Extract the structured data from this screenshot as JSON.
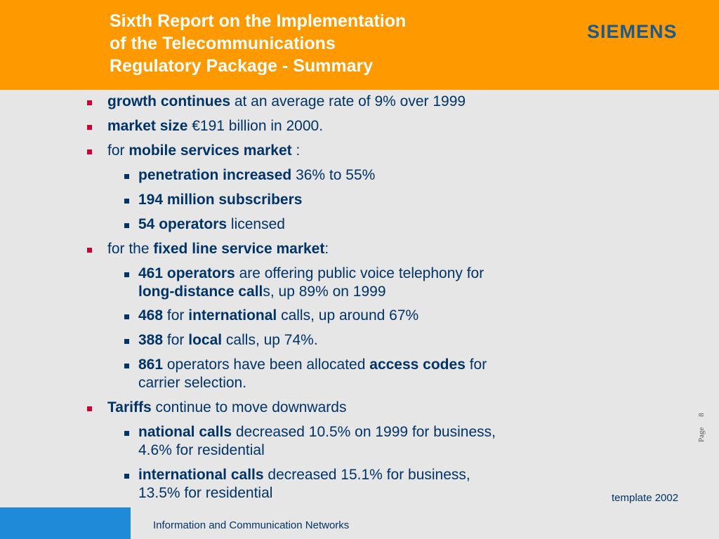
{
  "header": {
    "title_lines": [
      "Sixth Report on the Implementation",
      "of the Telecommunications",
      "Regulatory Package - Summary"
    ],
    "logo": "SIEMENS"
  },
  "bullets": [
    {
      "level": 1,
      "segments": [
        {
          "text": "growth continues",
          "bold": true
        },
        {
          "text": " at an average rate of 9% over 1999",
          "bold": false
        }
      ]
    },
    {
      "level": 1,
      "segments": [
        {
          "text": "market size",
          "bold": true
        },
        {
          "text": " €191 billion in 2000.",
          "bold": false
        }
      ]
    },
    {
      "level": 1,
      "segments": [
        {
          "text": "for ",
          "bold": false
        },
        {
          "text": "mobile services market",
          "bold": true
        },
        {
          "text": " :",
          "bold": false
        }
      ]
    },
    {
      "level": 2,
      "segments": [
        {
          "text": "penetration increased",
          "bold": true
        },
        {
          "text": " 36% to 55%",
          "bold": false
        }
      ]
    },
    {
      "level": 2,
      "segments": [
        {
          "text": "194 million subscribers",
          "bold": true
        }
      ]
    },
    {
      "level": 2,
      "segments": [
        {
          "text": "54 operators",
          "bold": true
        },
        {
          "text": " licensed",
          "bold": false
        }
      ]
    },
    {
      "level": 1,
      "segments": [
        {
          "text": "for the ",
          "bold": false
        },
        {
          "text": "fixed line service market",
          "bold": true
        },
        {
          "text": ":",
          "bold": false
        }
      ]
    },
    {
      "level": 2,
      "segments": [
        {
          "text": "461 operators",
          "bold": true
        },
        {
          "text": " are offering public voice telephony for",
          "bold": false
        }
      ]
    },
    {
      "level": 0,
      "segments": [
        {
          "text": "long-distance call",
          "bold": true
        },
        {
          "text": "s, up 89% on 1999",
          "bold": false
        }
      ]
    },
    {
      "level": 2,
      "segments": [
        {
          "text": "468",
          "bold": true
        },
        {
          "text": " for ",
          "bold": false
        },
        {
          "text": "international",
          "bold": true
        },
        {
          "text": " calls, up around 67%",
          "bold": false
        }
      ]
    },
    {
      "level": 2,
      "segments": [
        {
          "text": "388",
          "bold": true
        },
        {
          "text": " for ",
          "bold": false
        },
        {
          "text": "local",
          "bold": true
        },
        {
          "text": " calls, up 74%.",
          "bold": false
        }
      ]
    },
    {
      "level": 2,
      "segments": [
        {
          "text": "861",
          "bold": true
        },
        {
          "text": " operators have been allocated ",
          "bold": false
        },
        {
          "text": "access codes",
          "bold": true
        },
        {
          "text": " for",
          "bold": false
        }
      ]
    },
    {
      "level": 0,
      "segments": [
        {
          "text": "carrier selection.",
          "bold": false
        }
      ]
    },
    {
      "level": 1,
      "segments": [
        {
          "text": "Tariffs",
          "bold": true
        },
        {
          "text": " continue to move downwards",
          "bold": false
        }
      ]
    },
    {
      "level": 2,
      "segments": [
        {
          "text": "national calls",
          "bold": true
        },
        {
          "text": " decreased 10.5% on 1999 for business,",
          "bold": false
        }
      ]
    },
    {
      "level": 0,
      "segments": [
        {
          "text": "4.6% for residential",
          "bold": false
        }
      ]
    },
    {
      "level": 2,
      "segments": [
        {
          "text": "international calls",
          "bold": true
        },
        {
          "text": " decreased 15.1% for business,",
          "bold": false
        }
      ]
    },
    {
      "level": 0,
      "segments": [
        {
          "text": "13.5% for residential",
          "bold": false
        }
      ]
    }
  ],
  "page_label": "Page",
  "page_number": "8",
  "template_note": "template 2002",
  "footer": {
    "text": "Information and Communication Networks"
  },
  "colors": {
    "header_bg": "#ff9900",
    "body_bg": "#e6e6e6",
    "text": "#003366",
    "bullet_l1": "#cc0033",
    "bullet_l2": "#003366",
    "footer_accent": "#1f8ad8"
  }
}
